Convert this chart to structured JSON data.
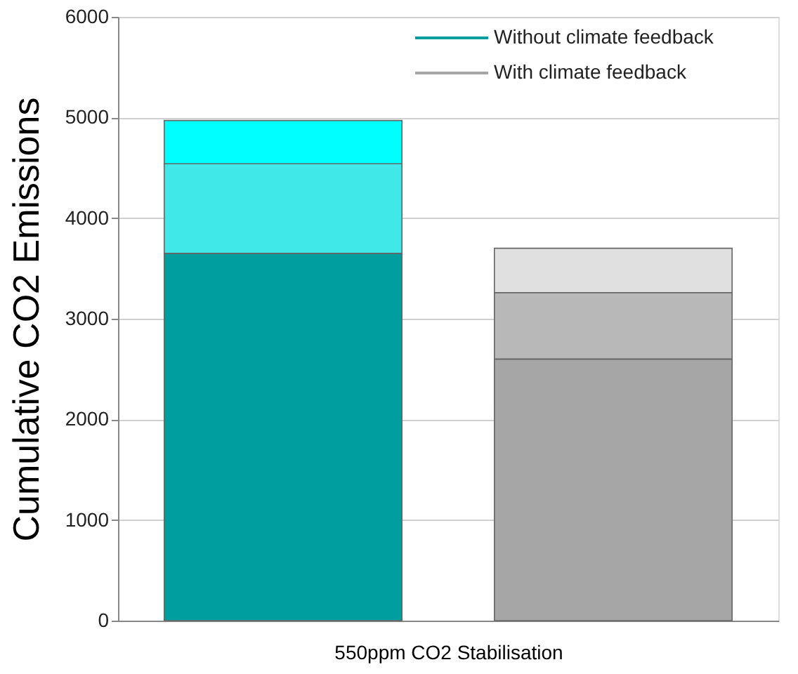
{
  "chart_data": {
    "type": "bar",
    "stacked": true,
    "categories": [
      null,
      null
    ],
    "xlabel": "550ppm CO2 Stabilisation",
    "ylabel": "Cumulative CO2 Emissions",
    "series": [
      {
        "name": "Without climate feedback",
        "color": "#009e9e",
        "values": [
          3650,
          null
        ]
      },
      {
        "color": "#40e8e8",
        "values": [
          890,
          null
        ]
      },
      {
        "color": "#00ffff",
        "values": [
          430,
          null
        ]
      },
      {
        "name": "With climate feedback",
        "color": "#a6a6a6",
        "values": [
          null,
          2600
        ]
      },
      {
        "color": "#b8b8b8",
        "values": [
          null,
          660
        ]
      },
      {
        "color": "#e0e0e0",
        "values": [
          null,
          440
        ]
      }
    ],
    "ylim": [
      0,
      6000
    ],
    "yticks": [
      0,
      1000,
      2000,
      3000,
      4000,
      5000,
      6000
    ],
    "grid": "y",
    "legend": "top right"
  }
}
